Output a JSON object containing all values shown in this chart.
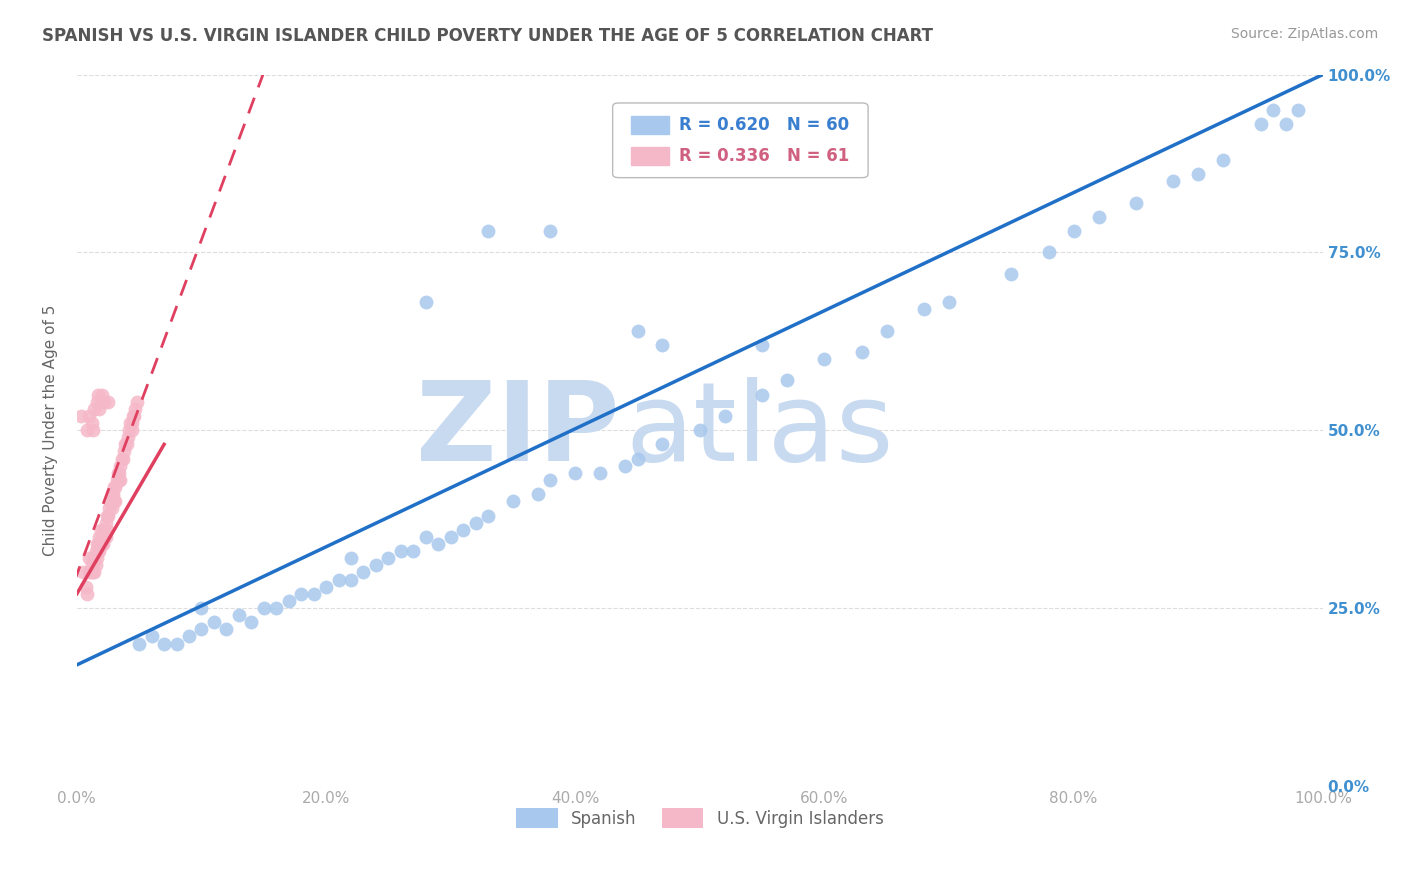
{
  "title": "SPANISH VS U.S. VIRGIN ISLANDER CHILD POVERTY UNDER THE AGE OF 5 CORRELATION CHART",
  "source": "Source: ZipAtlas.com",
  "ylabel": "Child Poverty Under the Age of 5",
  "blue_label": "Spanish",
  "pink_label": "U.S. Virgin Islanders",
  "blue_R": 0.62,
  "blue_N": 60,
  "pink_R": 0.336,
  "pink_N": 61,
  "blue_color": "#a8c8ed",
  "pink_color": "#f5b8c8",
  "blue_line_color": "#2070c8",
  "pink_line_color": "#e04060",
  "pink_line_dash": [
    6,
    4
  ],
  "watermark_zip": "ZIP",
  "watermark_atlas": "atlas",
  "watermark_color": "#c8daf0",
  "title_color": "#555555",
  "axis_label_color": "#666666",
  "tick_color": "#aaaaaa",
  "right_tick_color": "#4090d0",
  "legend_blue_text_color": "#3a7ecf",
  "legend_pink_text_color": "#d06080",
  "blue_scatter_x": [
    0.05,
    0.06,
    0.07,
    0.08,
    0.09,
    0.1,
    0.1,
    0.11,
    0.12,
    0.13,
    0.14,
    0.15,
    0.16,
    0.17,
    0.18,
    0.19,
    0.2,
    0.21,
    0.22,
    0.22,
    0.23,
    0.24,
    0.25,
    0.26,
    0.27,
    0.28,
    0.29,
    0.3,
    0.31,
    0.32,
    0.33,
    0.35,
    0.37,
    0.38,
    0.4,
    0.42,
    0.44,
    0.45,
    0.47,
    0.5,
    0.52,
    0.55,
    0.57,
    0.6,
    0.63,
    0.65,
    0.68,
    0.7,
    0.75,
    0.78,
    0.8,
    0.82,
    0.85,
    0.88,
    0.9,
    0.92,
    0.95,
    0.96,
    0.97,
    0.98
  ],
  "blue_scatter_y": [
    0.2,
    0.21,
    0.2,
    0.2,
    0.21,
    0.22,
    0.25,
    0.23,
    0.22,
    0.24,
    0.23,
    0.25,
    0.25,
    0.26,
    0.27,
    0.27,
    0.28,
    0.29,
    0.29,
    0.32,
    0.3,
    0.31,
    0.32,
    0.33,
    0.33,
    0.35,
    0.34,
    0.35,
    0.36,
    0.37,
    0.38,
    0.4,
    0.41,
    0.43,
    0.44,
    0.44,
    0.45,
    0.46,
    0.48,
    0.5,
    0.52,
    0.55,
    0.57,
    0.6,
    0.61,
    0.64,
    0.67,
    0.68,
    0.72,
    0.75,
    0.78,
    0.8,
    0.82,
    0.85,
    0.86,
    0.88,
    0.93,
    0.95,
    0.93,
    0.95
  ],
  "blue_outlier_x": [
    0.33,
    0.28,
    0.38,
    0.45,
    0.47,
    0.55
  ],
  "blue_outlier_y": [
    0.78,
    0.68,
    0.78,
    0.64,
    0.62,
    0.62
  ],
  "pink_scatter_x": [
    0.005,
    0.007,
    0.008,
    0.01,
    0.01,
    0.011,
    0.012,
    0.013,
    0.013,
    0.014,
    0.014,
    0.015,
    0.015,
    0.016,
    0.016,
    0.017,
    0.017,
    0.018,
    0.018,
    0.019,
    0.02,
    0.02,
    0.021,
    0.021,
    0.022,
    0.022,
    0.023,
    0.023,
    0.024,
    0.024,
    0.025,
    0.026,
    0.027,
    0.028,
    0.028,
    0.029,
    0.03,
    0.03,
    0.031,
    0.031,
    0.032,
    0.033,
    0.034,
    0.034,
    0.035,
    0.035,
    0.036,
    0.037,
    0.038,
    0.039,
    0.04,
    0.041,
    0.042,
    0.043,
    0.044,
    0.044,
    0.045,
    0.046,
    0.047,
    0.048,
    0.003
  ],
  "pink_scatter_y": [
    0.3,
    0.28,
    0.27,
    0.32,
    0.3,
    0.3,
    0.31,
    0.32,
    0.3,
    0.32,
    0.3,
    0.33,
    0.31,
    0.34,
    0.32,
    0.34,
    0.33,
    0.35,
    0.33,
    0.36,
    0.35,
    0.34,
    0.36,
    0.34,
    0.36,
    0.35,
    0.37,
    0.35,
    0.38,
    0.36,
    0.38,
    0.39,
    0.4,
    0.41,
    0.39,
    0.41,
    0.42,
    0.4,
    0.42,
    0.4,
    0.43,
    0.44,
    0.44,
    0.43,
    0.45,
    0.43,
    0.46,
    0.46,
    0.47,
    0.48,
    0.48,
    0.49,
    0.5,
    0.51,
    0.51,
    0.5,
    0.52,
    0.52,
    0.53,
    0.54,
    0.52
  ],
  "pink_outlier_x": [
    0.008,
    0.01,
    0.012,
    0.013,
    0.014,
    0.016,
    0.017,
    0.018,
    0.02,
    0.022,
    0.025
  ],
  "pink_outlier_y": [
    0.5,
    0.52,
    0.51,
    0.5,
    0.53,
    0.54,
    0.55,
    0.53,
    0.55,
    0.54,
    0.54
  ],
  "xlim": [
    0.0,
    1.0
  ],
  "ylim": [
    0.0,
    1.0
  ],
  "xticks": [
    0.0,
    0.2,
    0.4,
    0.6,
    0.8,
    1.0
  ],
  "yticks": [
    0.0,
    0.25,
    0.5,
    0.75,
    1.0
  ],
  "xtick_labels": [
    "0.0%",
    "20.0%",
    "40.0%",
    "60.0%",
    "80.0%",
    "100.0%"
  ],
  "ytick_labels": [
    "0.0%",
    "25.0%",
    "50.0%",
    "75.0%",
    "100.0%"
  ]
}
